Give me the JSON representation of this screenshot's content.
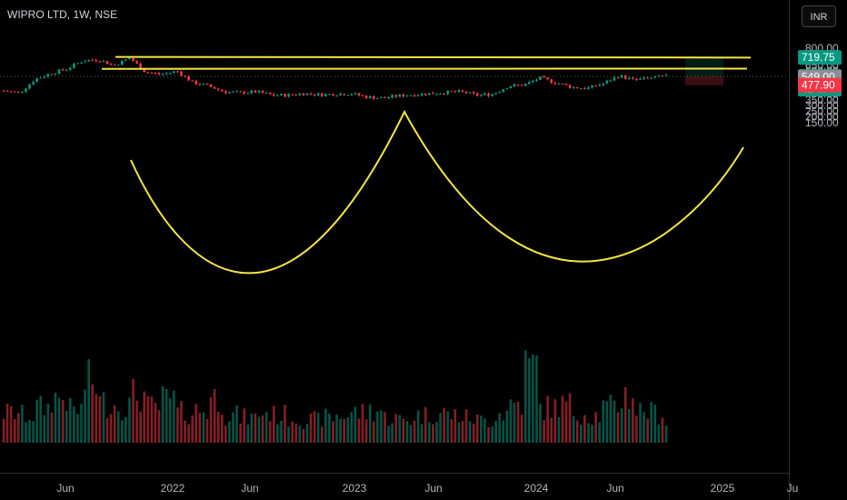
{
  "header": {
    "symbol_title": "WIPRO LTD, 1W, NSE",
    "currency_button": "INR"
  },
  "chart_data": {
    "type": "candlestick",
    "title": "WIPRO LTD, 1W, NSE",
    "currency": "INR",
    "y_axis_ticks": [
      "800.00",
      "750.00",
      "700.00",
      "650.00",
      "600.00",
      "550.00",
      "500.00",
      "450.00",
      "400.00",
      "350.00",
      "300.00",
      "250.00",
      "200.00",
      "150.00"
    ],
    "ylim": [
      100,
      820
    ],
    "x_axis_ticks": [
      "Jun",
      "2022",
      "Jun",
      "2023",
      "Jun",
      "2024",
      "Jun",
      "2025",
      "Ju"
    ],
    "price_labels": [
      {
        "text": "719.75",
        "value": 719.75,
        "color": "#089981"
      },
      {
        "text": "553.75",
        "value": 553.75,
        "color": "#089981",
        "countdown": "4d 4h"
      },
      {
        "text": "549.00",
        "value": 549.0,
        "color": "#8a8f99"
      },
      {
        "text": "477.90",
        "value": 477.9,
        "color": "#f23645"
      }
    ],
    "current_price": 553.75,
    "close_series_approx": [
      {
        "date": "2021-04",
        "value": 430
      },
      {
        "date": "2021-05",
        "value": 410
      },
      {
        "date": "2021-06",
        "value": 530
      },
      {
        "date": "2021-07",
        "value": 580
      },
      {
        "date": "2021-08",
        "value": 620
      },
      {
        "date": "2021-09",
        "value": 690
      },
      {
        "date": "2021-10",
        "value": 700
      },
      {
        "date": "2021-11",
        "value": 650
      },
      {
        "date": "2021-12",
        "value": 715
      },
      {
        "date": "2022-01",
        "value": 590
      },
      {
        "date": "2022-02",
        "value": 570
      },
      {
        "date": "2022-03",
        "value": 600
      },
      {
        "date": "2022-04",
        "value": 500
      },
      {
        "date": "2022-05",
        "value": 470
      },
      {
        "date": "2022-06",
        "value": 420
      },
      {
        "date": "2022-07",
        "value": 410
      },
      {
        "date": "2022-08",
        "value": 420
      },
      {
        "date": "2022-09",
        "value": 390
      },
      {
        "date": "2022-10",
        "value": 390
      },
      {
        "date": "2022-11",
        "value": 405
      },
      {
        "date": "2022-12",
        "value": 395
      },
      {
        "date": "2023-01",
        "value": 400
      },
      {
        "date": "2023-02",
        "value": 405
      },
      {
        "date": "2023-03",
        "value": 375
      },
      {
        "date": "2023-04",
        "value": 365
      },
      {
        "date": "2023-05",
        "value": 385
      },
      {
        "date": "2023-06",
        "value": 395
      },
      {
        "date": "2023-07",
        "value": 405
      },
      {
        "date": "2023-08",
        "value": 415
      },
      {
        "date": "2023-09",
        "value": 420
      },
      {
        "date": "2023-10",
        "value": 390
      },
      {
        "date": "2023-11",
        "value": 400
      },
      {
        "date": "2023-12",
        "value": 470
      },
      {
        "date": "2024-01",
        "value": 480
      },
      {
        "date": "2024-02",
        "value": 540
      },
      {
        "date": "2024-03",
        "value": 500
      },
      {
        "date": "2024-04",
        "value": 460
      },
      {
        "date": "2024-05",
        "value": 450
      },
      {
        "date": "2024-06",
        "value": 490
      },
      {
        "date": "2024-07",
        "value": 560
      },
      {
        "date": "2024-08",
        "value": 520
      },
      {
        "date": "2024-09",
        "value": 540
      },
      {
        "date": "2024-10",
        "value": 553.75
      }
    ],
    "volume_approx": [
      60,
      55,
      70,
      90,
      65,
      120,
      80,
      75,
      95,
      70,
      85,
      60,
      65,
      90,
      55,
      50,
      60,
      55,
      50,
      45,
      50,
      55,
      60,
      65,
      50,
      45,
      55,
      60,
      55,
      50,
      45,
      60,
      80,
      150,
      70,
      75,
      60,
      55,
      70,
      95,
      65,
      60,
      40
    ],
    "annotations": {
      "resistance_upper": 720,
      "resistance_lower": 622,
      "cup_bottom": 245,
      "target_zone": [
        553.75,
        719.75
      ],
      "stop_zone": [
        477.9,
        553.75
      ]
    },
    "colors": {
      "up": "#089981",
      "down": "#f23645",
      "drawing": "#f5e642",
      "background": "#000000"
    }
  }
}
